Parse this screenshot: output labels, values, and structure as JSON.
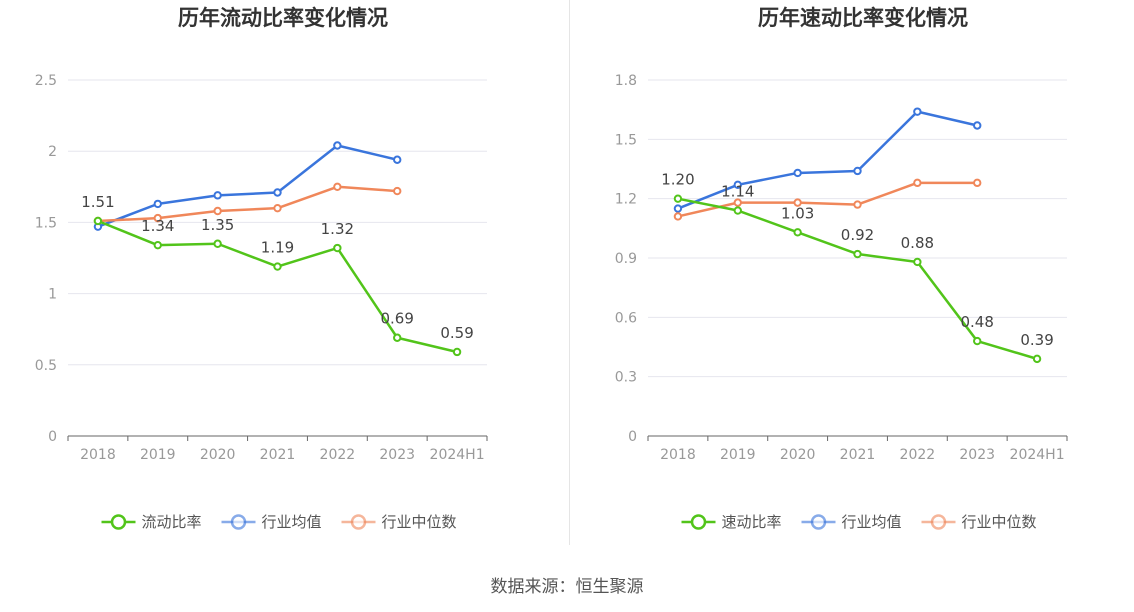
{
  "source_label": "数据来源：恒生聚源",
  "chart_data": [
    {
      "type": "line",
      "title": "历年流动比率变化情况",
      "categories": [
        "2018",
        "2019",
        "2020",
        "2021",
        "2022",
        "2023",
        "2024H1"
      ],
      "ylim": [
        0,
        2.5
      ],
      "yticks": [
        "0",
        "0.5",
        "1",
        "1.5",
        "2",
        "2.5"
      ],
      "ytick_values": [
        0,
        0.5,
        1,
        1.5,
        2,
        2.5
      ],
      "series": [
        {
          "name": "流动比率",
          "color": "#52c41a",
          "values": [
            1.51,
            1.34,
            1.35,
            1.19,
            1.32,
            0.69,
            0.59
          ],
          "labels": [
            "1.51",
            "1.34",
            "1.35",
            "1.19",
            "1.32",
            "0.69",
            "0.59"
          ]
        },
        {
          "name": "行业均值",
          "color": "#3a75dc",
          "values": [
            1.47,
            1.63,
            1.69,
            1.71,
            2.04,
            1.94,
            null
          ]
        },
        {
          "name": "行业中位数",
          "color": "#f0875a",
          "values": [
            1.51,
            1.53,
            1.58,
            1.6,
            1.75,
            1.72,
            null
          ]
        }
      ]
    },
    {
      "type": "line",
      "title": "历年速动比率变化情况",
      "categories": [
        "2018",
        "2019",
        "2020",
        "2021",
        "2022",
        "2023",
        "2024H1"
      ],
      "ylim": [
        0,
        1.8
      ],
      "yticks": [
        "0",
        "0.3",
        "0.6",
        "0.9",
        "1.2",
        "1.5",
        "1.8"
      ],
      "ytick_values": [
        0,
        0.3,
        0.6,
        0.9,
        1.2,
        1.5,
        1.8
      ],
      "series": [
        {
          "name": "速动比率",
          "color": "#52c41a",
          "values": [
            1.2,
            1.14,
            1.03,
            0.92,
            0.88,
            0.48,
            0.39
          ],
          "labels": [
            "1.20",
            "1.14",
            "1.03",
            "0.92",
            "0.88",
            "0.48",
            "0.39"
          ]
        },
        {
          "name": "行业均值",
          "color": "#3a75dc",
          "values": [
            1.15,
            1.27,
            1.33,
            1.34,
            1.64,
            1.57,
            null
          ]
        },
        {
          "name": "行业中位数",
          "color": "#f0875a",
          "values": [
            1.11,
            1.18,
            1.18,
            1.17,
            1.28,
            1.28,
            null
          ]
        }
      ]
    }
  ]
}
